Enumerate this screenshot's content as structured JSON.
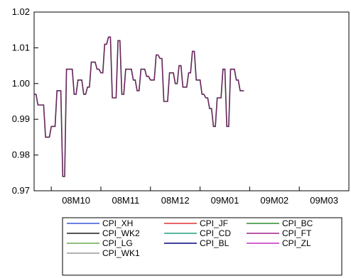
{
  "chart_data": {
    "type": "line",
    "title": "",
    "xlabel": "",
    "ylabel": "",
    "ylim": [
      0.97,
      1.02
    ],
    "y_ticks": [
      "0.97",
      "0.98",
      "0.99",
      "1.00",
      "1.01",
      "1.02"
    ],
    "x_ticks": [
      "08M10",
      "08M11",
      "08M12",
      "09M01",
      "09M02",
      "09M03"
    ],
    "x_range": [
      0,
      165
    ],
    "grid": false,
    "legend_position": "bottom",
    "series": [
      {
        "name": "CPI_XH",
        "color": "#3a55d9"
      },
      {
        "name": "CPI_JF",
        "color": "#e03030"
      },
      {
        "name": "CPI_BC",
        "color": "#2e8b2e"
      },
      {
        "name": "CPI_WK2",
        "color": "#1a1a1a"
      },
      {
        "name": "CPI_CD",
        "color": "#20a080"
      },
      {
        "name": "CPI_FT",
        "color": "#a0208a"
      },
      {
        "name": "CPI_LG",
        "color": "#6aa84f"
      },
      {
        "name": "CPI_BL",
        "color": "#000080"
      },
      {
        "name": "CPI_ZL",
        "color": "#c030c0"
      },
      {
        "name": "CPI_WK1",
        "color": "#999999"
      }
    ],
    "points": [
      [
        0,
        0.997
      ],
      [
        1,
        0.997
      ],
      [
        2,
        0.994
      ],
      [
        5,
        0.994
      ],
      [
        6,
        0.985
      ],
      [
        8,
        0.985
      ],
      [
        9,
        0.988
      ],
      [
        11,
        0.988
      ],
      [
        12,
        0.998
      ],
      [
        14,
        0.998
      ],
      [
        15,
        0.974
      ],
      [
        16,
        0.974
      ],
      [
        17,
        1.004
      ],
      [
        20,
        1.004
      ],
      [
        21,
        0.997
      ],
      [
        22,
        0.997
      ],
      [
        23,
        1.001
      ],
      [
        25,
        1.001
      ],
      [
        26,
        0.997
      ],
      [
        27,
        0.997
      ],
      [
        28,
        0.999
      ],
      [
        29,
        0.999
      ],
      [
        30,
        1.006
      ],
      [
        32,
        1.006
      ],
      [
        33,
        1.004
      ],
      [
        34,
        1.004
      ],
      [
        35,
        1.003
      ],
      [
        36,
        1.003
      ],
      [
        37,
        1.011
      ],
      [
        38,
        1.011
      ],
      [
        39,
        1.013
      ],
      [
        40,
        1.013
      ],
      [
        41,
        0.996
      ],
      [
        43,
        0.996
      ],
      [
        44,
        1.012
      ],
      [
        45,
        1.012
      ],
      [
        46,
        0.997
      ],
      [
        47,
        0.997
      ],
      [
        48,
        1.004
      ],
      [
        51,
        1.004
      ],
      [
        52,
        1.001
      ],
      [
        53,
        1.001
      ],
      [
        54,
        0.998
      ],
      [
        55,
        0.998
      ],
      [
        56,
        1.004
      ],
      [
        58,
        1.004
      ],
      [
        59,
        1.002
      ],
      [
        60,
        1.002
      ],
      [
        61,
        1.001
      ],
      [
        63,
        1.001
      ],
      [
        64,
        1.008
      ],
      [
        65,
        1.008
      ],
      [
        66,
        1.007
      ],
      [
        67,
        1.007
      ],
      [
        68,
        0.995
      ],
      [
        70,
        0.995
      ],
      [
        71,
        1.003
      ],
      [
        73,
        1.003
      ],
      [
        74,
        1.0
      ],
      [
        75,
        1.0
      ],
      [
        76,
        1.005
      ],
      [
        77,
        1.005
      ],
      [
        78,
        0.999
      ],
      [
        80,
        0.999
      ],
      [
        81,
        1.003
      ],
      [
        82,
        1.003
      ],
      [
        83,
        1.009
      ],
      [
        84,
        1.009
      ],
      [
        85,
        1.001
      ],
      [
        87,
        1.001
      ],
      [
        88,
        0.997
      ],
      [
        89,
        0.997
      ],
      [
        90,
        0.996
      ],
      [
        91,
        0.996
      ],
      [
        92,
        0.993
      ],
      [
        93,
        0.993
      ],
      [
        94,
        0.988
      ],
      [
        95,
        0.988
      ],
      [
        96,
        0.996
      ],
      [
        98,
        0.996
      ],
      [
        99,
        1.004
      ],
      [
        100,
        1.004
      ],
      [
        101,
        0.988
      ],
      [
        102,
        0.988
      ],
      [
        103,
        1.004
      ],
      [
        105,
        1.004
      ],
      [
        106,
        1.001
      ],
      [
        107,
        1.001
      ],
      [
        108,
        0.998
      ],
      [
        110,
        0.998
      ]
    ]
  }
}
